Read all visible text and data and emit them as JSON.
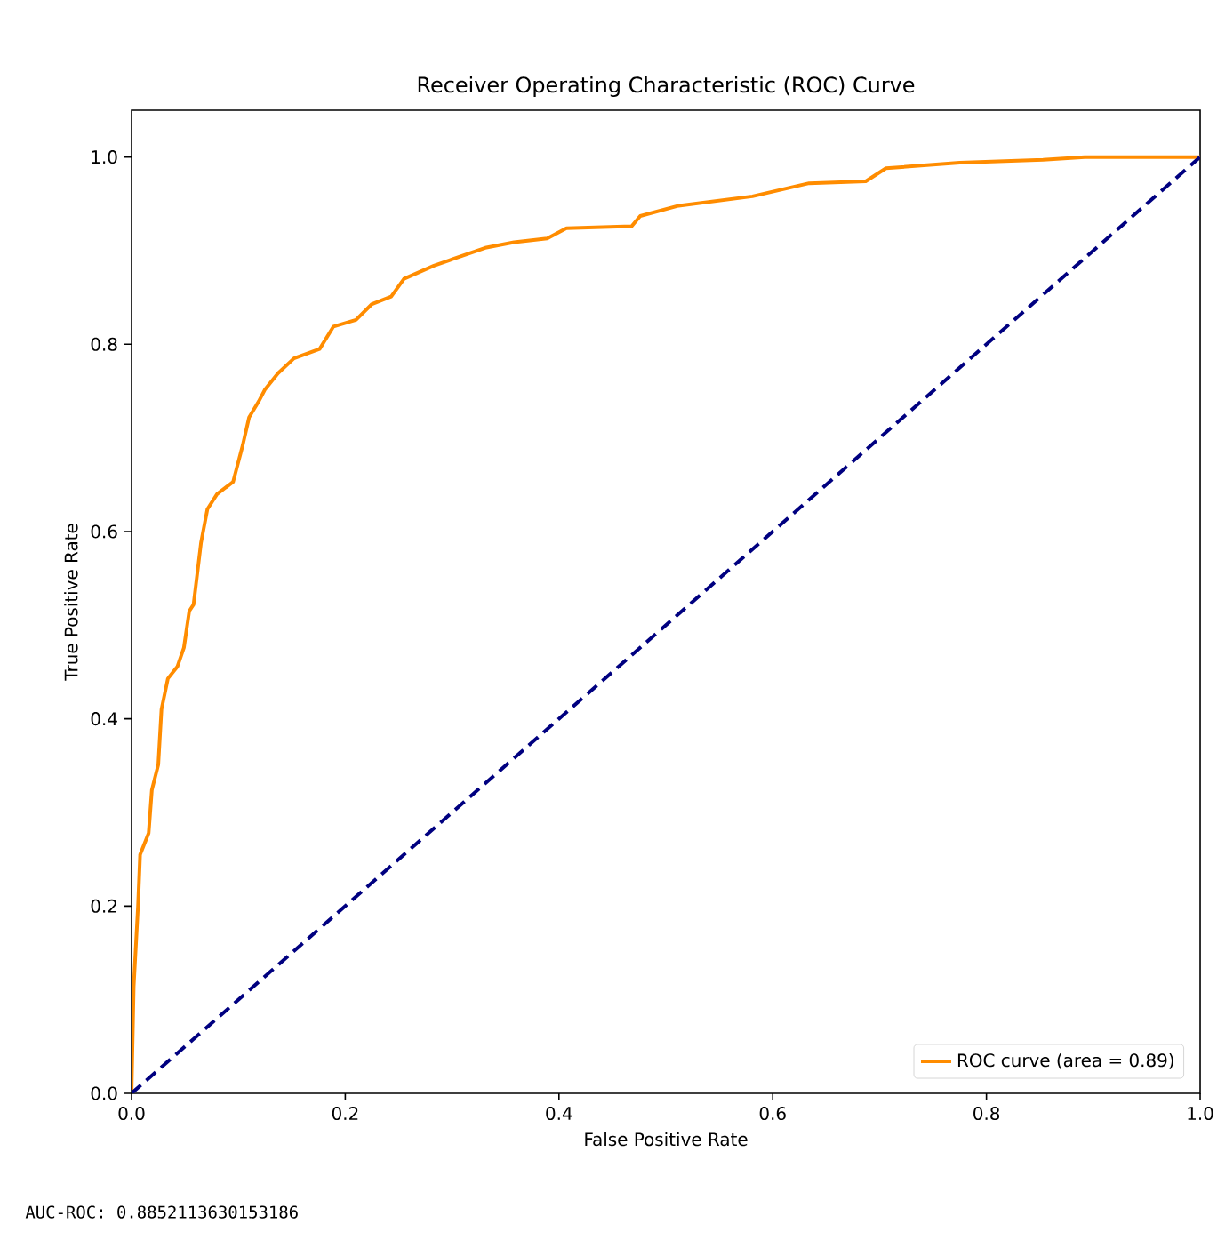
{
  "chart_data": {
    "type": "line",
    "title": "Receiver Operating Characteristic (ROC) Curve",
    "xlabel": "False Positive Rate",
    "ylabel": "True Positive Rate",
    "xlim": [
      0,
      1
    ],
    "ylim": [
      0,
      1.05
    ],
    "xticks": [
      {
        "value": 0,
        "label": "0.0"
      },
      0.2,
      0.4,
      0.6,
      0.8,
      {
        "value": 1,
        "label": "1.0"
      }
    ],
    "yticks": [
      {
        "value": 0,
        "label": "0.0"
      },
      0.2,
      0.4,
      0.6,
      0.8,
      {
        "value": 1,
        "label": "1.0"
      }
    ],
    "legend": "bottom right",
    "grid": false,
    "annotations": [
      "AUC-ROC:  0.8852113630153186"
    ],
    "series": [
      {
        "name": "ROC curve (area = 0.89)",
        "color": "#ff8c00",
        "line_style": "solid",
        "x": [
          0,
          0.002,
          0.006,
          0.008,
          0.016,
          0.019,
          0.025,
          0.028,
          0.034,
          0.043,
          0.049,
          0.054,
          0.058,
          0.065,
          0.071,
          0.08,
          0.095,
          0.104,
          0.11,
          0.119,
          0.125,
          0.137,
          0.152,
          0.176,
          0.189,
          0.21,
          0.225,
          0.243,
          0.255,
          0.283,
          0.298,
          0.331,
          0.358,
          0.389,
          0.407,
          0.468,
          0.476,
          0.512,
          0.581,
          0.634,
          0.687,
          0.706,
          0.775,
          0.853,
          0.892,
          1.0
        ],
        "values": [
          0,
          0.114,
          0.199,
          0.255,
          0.278,
          0.324,
          0.351,
          0.41,
          0.443,
          0.456,
          0.476,
          0.515,
          0.522,
          0.588,
          0.624,
          0.64,
          0.653,
          0.692,
          0.722,
          0.739,
          0.752,
          0.769,
          0.785,
          0.795,
          0.819,
          0.826,
          0.843,
          0.851,
          0.87,
          0.884,
          0.89,
          0.903,
          0.909,
          0.913,
          0.924,
          0.926,
          0.937,
          0.948,
          0.958,
          0.972,
          0.974,
          0.988,
          0.994,
          0.997,
          1.0,
          1.0
        ]
      },
      {
        "color": "#000080",
        "line_style": "dashed",
        "x": [
          0,
          1
        ],
        "values": [
          0,
          1
        ]
      }
    ]
  }
}
